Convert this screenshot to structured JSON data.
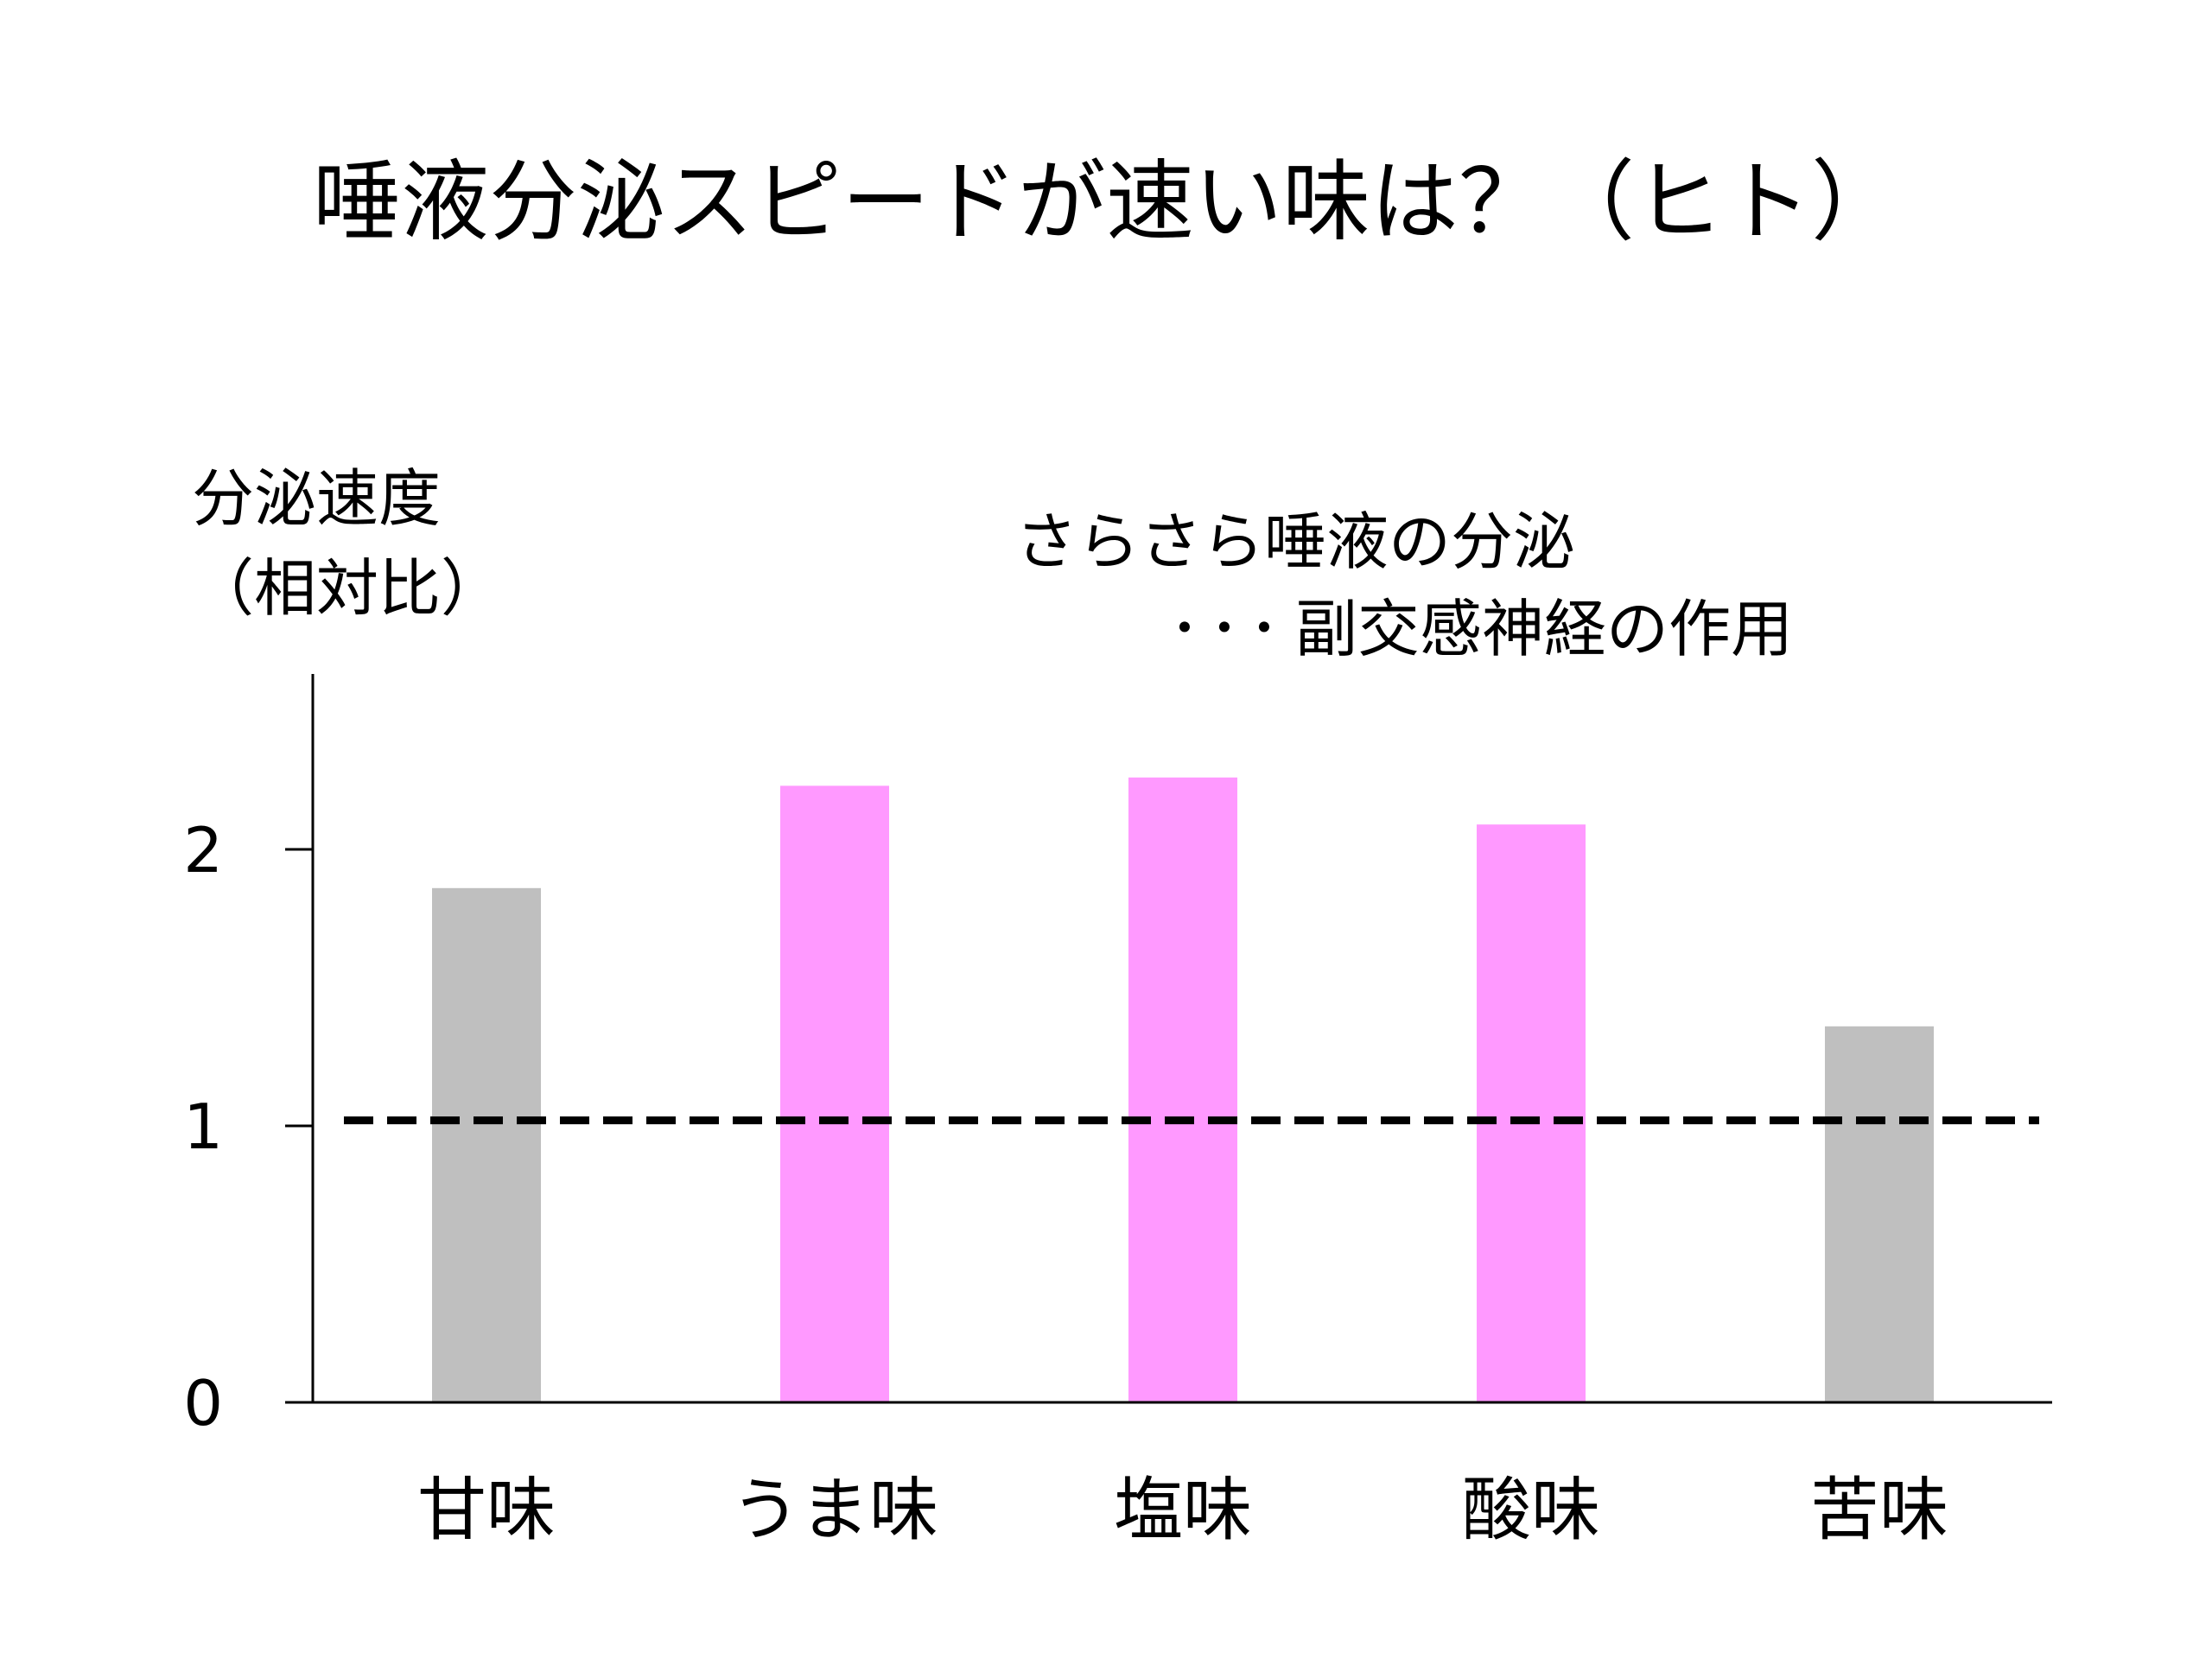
{
  "chart_data": {
    "type": "bar",
    "title": "唾液分泌スピードが速い味は？（ヒト）",
    "ylabel_lines": [
      "分泌速度",
      "（相対比）"
    ],
    "categories": [
      "甘味",
      "うま味",
      "塩味",
      "酸味",
      "苦味"
    ],
    "values": [
      1.86,
      2.23,
      2.26,
      2.09,
      1.36
    ],
    "bar_colors": [
      "#bfbfbf",
      "#ff99ff",
      "#ff99ff",
      "#ff99ff",
      "#bfbfbf"
    ],
    "yticks": [
      "0",
      "1",
      "2"
    ],
    "ylim": [
      0,
      2.6
    ],
    "reference_line": {
      "value": 1.02,
      "style": "dashed",
      "color": "#000000"
    },
    "annotation": {
      "line1": "さらさら唾液の分泌",
      "dots": "･･･",
      "line2": "副交感神経の作用"
    },
    "grid": false,
    "legend": "none"
  }
}
